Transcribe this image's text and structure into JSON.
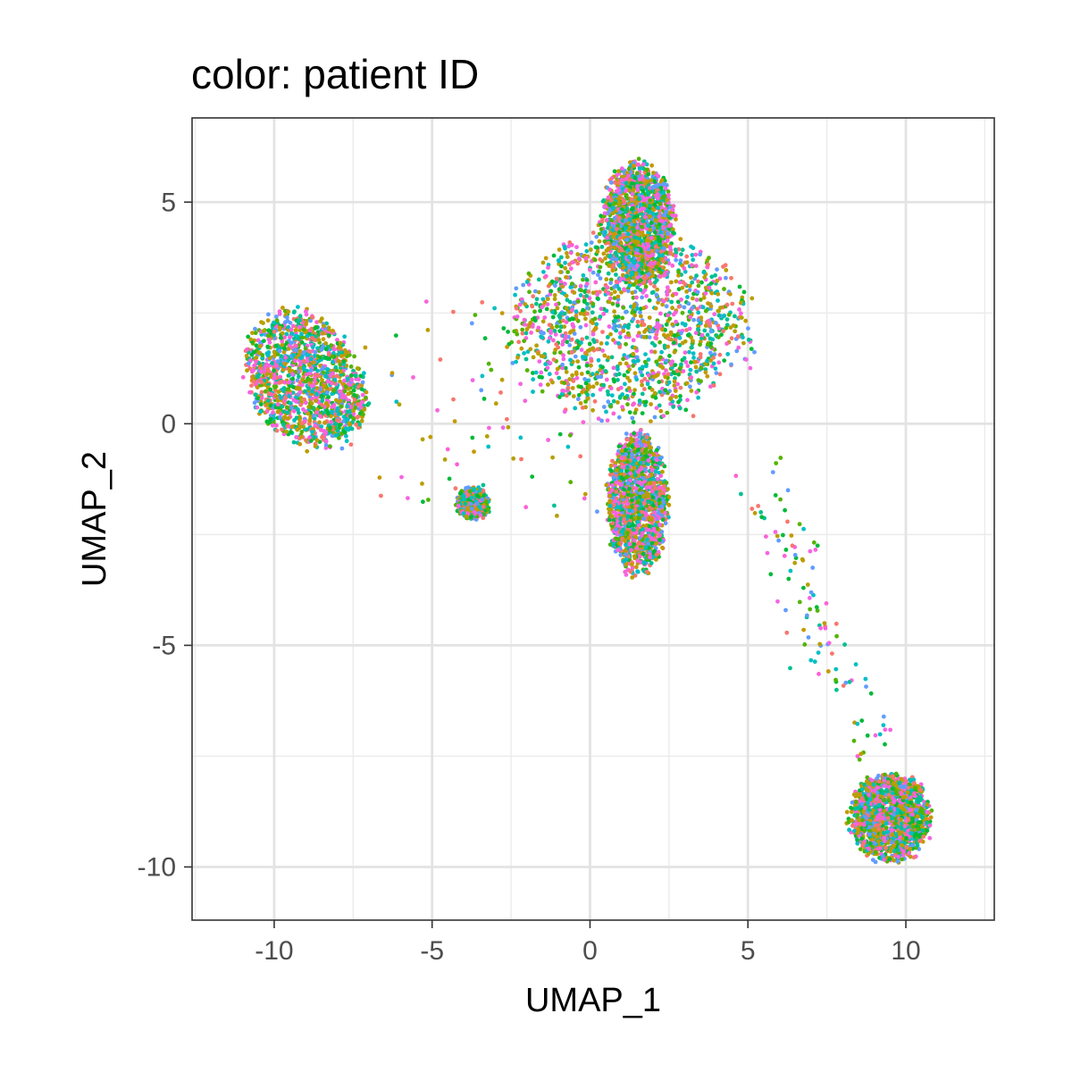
{
  "chart_data": {
    "type": "scatter",
    "title": "color: patient ID",
    "xlabel": "UMAP_1",
    "ylabel": "UMAP_2",
    "xlim": [
      -12.6,
      12.8
    ],
    "ylim": [
      -11.2,
      6.9
    ],
    "xticks": [
      -10,
      -5,
      0,
      5,
      10
    ],
    "xtick_labels": [
      "-10",
      "-5",
      "0",
      "5",
      "10"
    ],
    "yticks": [
      -10,
      -5,
      0,
      5
    ],
    "ytick_labels": [
      "-10",
      "-5",
      "0",
      "5"
    ],
    "grid": true,
    "legend": "none",
    "point_colors": [
      "#F8766D",
      "#B79F00",
      "#00BA38",
      "#00BFC4",
      "#619CFF",
      "#F564E3",
      "#C49A00",
      "#53B400",
      "#00C094",
      "#FB61D7"
    ],
    "clusters": [
      {
        "name": "left cluster",
        "center": [
          -9.0,
          1.0
        ],
        "spread": [
          1.9,
          1.35
        ],
        "rotation": -0.45,
        "density": "high"
      },
      {
        "name": "small cluster",
        "center": [
          -3.7,
          -1.8
        ],
        "spread": [
          0.5,
          0.35
        ],
        "rotation": 0,
        "density": "medium"
      },
      {
        "name": "central cluster",
        "center": [
          1.3,
          2.2
        ],
        "spread": [
          3.6,
          2.0
        ],
        "rotation": 0,
        "density": "high"
      },
      {
        "name": "central arm",
        "center": [
          1.5,
          4.5
        ],
        "spread": [
          1.1,
          1.3
        ],
        "rotation": 0,
        "density": "high"
      },
      {
        "name": "lower stem",
        "center": [
          1.5,
          -1.8
        ],
        "spread": [
          0.9,
          1.5
        ],
        "rotation": 0,
        "density": "high"
      },
      {
        "name": "bottom-right cluster",
        "center": [
          9.5,
          -8.9
        ],
        "spread": [
          1.2,
          0.95
        ],
        "rotation": 0,
        "density": "high"
      }
    ]
  }
}
